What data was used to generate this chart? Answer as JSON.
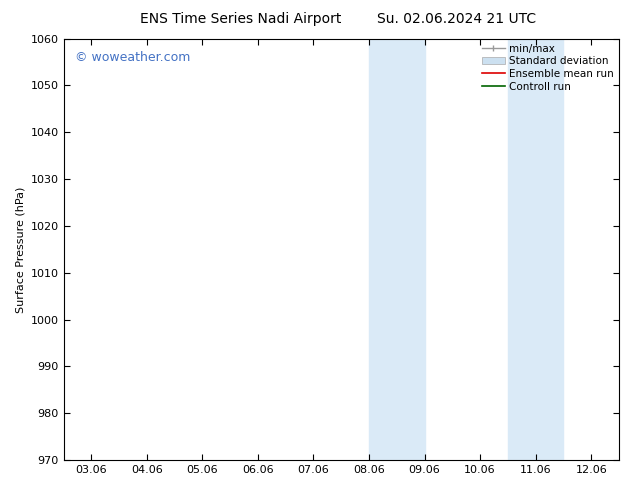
{
  "title_left": "ENS Time Series Nadi Airport",
  "title_right": "Su. 02.06.2024 21 UTC",
  "ylabel": "Surface Pressure (hPa)",
  "ylim": [
    970,
    1060
  ],
  "yticks": [
    970,
    980,
    990,
    1000,
    1010,
    1020,
    1030,
    1040,
    1050,
    1060
  ],
  "xtick_labels": [
    "03.06",
    "04.06",
    "05.06",
    "06.06",
    "07.06",
    "08.06",
    "09.06",
    "10.06",
    "11.06",
    "12.06"
  ],
  "n_xticks": 10,
  "xlim_days": [
    0,
    9
  ],
  "shaded_regions": [
    {
      "x_start": 5.0,
      "x_end": 5.5,
      "color": "#daeaf7"
    },
    {
      "x_start": 5.5,
      "x_end": 6.0,
      "color": "#daeaf7"
    },
    {
      "x_start": 7.5,
      "x_end": 8.0,
      "color": "#daeaf7"
    },
    {
      "x_start": 8.0,
      "x_end": 8.5,
      "color": "#daeaf7"
    }
  ],
  "watermark": "© woweather.com",
  "watermark_color": "#4472c4",
  "watermark_fontsize": 9,
  "background_color": "#ffffff",
  "legend_labels": [
    "min/max",
    "Standard deviation",
    "Ensemble mean run",
    "Controll run"
  ],
  "legend_minmax_color": "#999999",
  "legend_std_color": "#cce0f0",
  "legend_ens_color": "#dd0000",
  "legend_ctrl_color": "#006400",
  "title_fontsize": 10,
  "ylabel_fontsize": 8,
  "tick_fontsize": 8,
  "legend_fontsize": 7.5
}
